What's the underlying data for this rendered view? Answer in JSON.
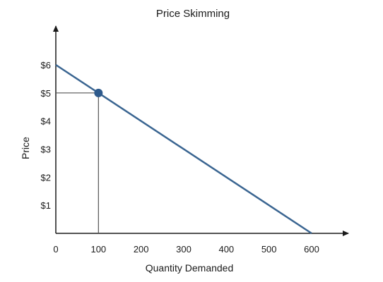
{
  "chart_data": {
    "type": "line",
    "title": "Price Skimming",
    "xlabel": "Quantity Demanded",
    "ylabel": "Price",
    "x_ticks": [
      0,
      100,
      200,
      300,
      400,
      500,
      600
    ],
    "x_tick_labels": [
      "0",
      "100",
      "200",
      "300",
      "400",
      "500",
      "600"
    ],
    "y_ticks": [
      1,
      2,
      3,
      4,
      5,
      6
    ],
    "y_tick_labels": [
      "$1",
      "$2",
      "$3",
      "$4",
      "$5",
      "$6"
    ],
    "xlim": [
      0,
      700
    ],
    "ylim": [
      0,
      7
    ],
    "grid": false,
    "series": [
      {
        "x": [
          0,
          600
        ],
        "y": [
          6,
          0
        ]
      }
    ],
    "highlight_point": {
      "x": 100,
      "y": 5
    },
    "colors": {
      "line": "#3a6591",
      "point": "#2e5a8c",
      "axis": "#1a1a1a",
      "guide": "#555555"
    }
  }
}
